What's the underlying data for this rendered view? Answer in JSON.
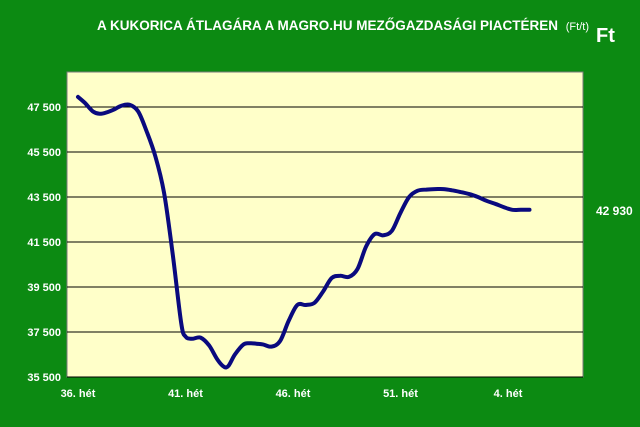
{
  "colors": {
    "background": "#0c8a12",
    "plot_area": "#ffffc9",
    "line": "#0a0a7e",
    "text": "#ffffff",
    "grid": "#000000"
  },
  "chart_data": {
    "type": "line",
    "title": "A KUKORICA ÁTLAGÁRA A MAGRO.HU MEZŐGAZDASÁGI PIACTÉREN",
    "title_unit": "(Ft/t)",
    "unit_label": "Ft",
    "xlabel": "",
    "ylabel": "",
    "ylim": [
      35500,
      48500
    ],
    "yticks": [
      35500,
      37500,
      39500,
      41500,
      43500,
      45500,
      47500
    ],
    "ytick_labels": [
      "35 500",
      "37 500",
      "39 500",
      "41 500",
      "43 500",
      "45 500",
      "47 500"
    ],
    "xlim": [
      0,
      21
    ],
    "xticks": [
      0,
      5,
      10,
      15,
      20
    ],
    "xtick_labels": [
      "36. hét",
      "41. hét",
      "46. hét",
      "51. hét",
      "4. hét"
    ],
    "grid": true,
    "legend": "none",
    "end_label": "42 930",
    "series": [
      {
        "x": [
          0,
          0.3,
          0.7,
          1.0,
          1.3,
          1.7,
          2.0,
          2.4,
          2.8,
          3.2,
          3.6,
          4.0,
          4.4,
          4.8,
          5.0,
          5.3,
          5.7,
          6.1,
          6.5,
          6.8,
          7.0,
          7.3,
          7.7,
          8.0,
          8.3,
          8.6,
          9.0,
          9.4,
          9.8,
          10.2,
          10.6,
          11.0,
          11.4,
          11.8,
          12.2,
          12.6,
          13.0,
          13.4,
          13.8,
          14.2,
          14.6,
          15.0,
          15.4,
          15.8,
          16.2,
          16.6,
          17.0,
          17.4,
          17.8,
          18.2,
          18.6,
          19.0,
          19.4,
          19.8,
          20.2,
          20.6,
          21.0
        ],
        "values": [
          47950,
          47700,
          47300,
          47200,
          47250,
          47400,
          47550,
          47600,
          47300,
          46400,
          45300,
          43700,
          41000,
          37900,
          37300,
          37200,
          37250,
          36900,
          36250,
          35950,
          36000,
          36500,
          36950,
          37000,
          36980,
          36950,
          36850,
          37100,
          38000,
          38700,
          38700,
          38800,
          39300,
          39900,
          40000,
          39950,
          40300,
          41300,
          41850,
          41800,
          42000,
          42800,
          43500,
          43780,
          43830,
          43850,
          43850,
          43800,
          43720,
          43630,
          43500,
          43330,
          43200,
          43050,
          42930,
          42930,
          42930
        ]
      }
    ]
  }
}
